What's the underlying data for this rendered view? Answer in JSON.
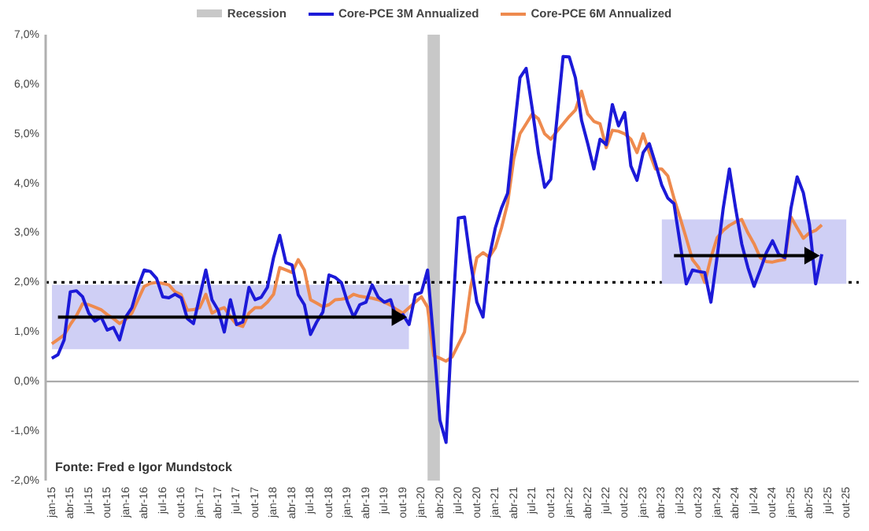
{
  "chart_data": {
    "type": "line",
    "annotations": [
      "Fonte: Fred e Igor Mundstock"
    ],
    "x": [
      "2015-01",
      "2015-02",
      "2015-03",
      "2015-04",
      "2015-05",
      "2015-06",
      "2015-07",
      "2015-08",
      "2015-09",
      "2015-10",
      "2015-11",
      "2015-12",
      "2016-01",
      "2016-02",
      "2016-03",
      "2016-04",
      "2016-05",
      "2016-06",
      "2016-07",
      "2016-08",
      "2016-09",
      "2016-10",
      "2016-11",
      "2016-12",
      "2017-01",
      "2017-02",
      "2017-03",
      "2017-04",
      "2017-05",
      "2017-06",
      "2017-07",
      "2017-08",
      "2017-09",
      "2017-10",
      "2017-11",
      "2017-12",
      "2018-01",
      "2018-02",
      "2018-03",
      "2018-04",
      "2018-05",
      "2018-06",
      "2018-07",
      "2018-08",
      "2018-09",
      "2018-10",
      "2018-11",
      "2018-12",
      "2019-01",
      "2019-02",
      "2019-03",
      "2019-04",
      "2019-05",
      "2019-06",
      "2019-07",
      "2019-08",
      "2019-09",
      "2019-10",
      "2019-11",
      "2019-12",
      "2020-01",
      "2020-02",
      "2020-03",
      "2020-04",
      "2020-05",
      "2020-06",
      "2020-07",
      "2020-08",
      "2020-09",
      "2020-10",
      "2020-11",
      "2020-12",
      "2021-01",
      "2021-02",
      "2021-03",
      "2021-04",
      "2021-05",
      "2021-06",
      "2021-07",
      "2021-08",
      "2021-09",
      "2021-10",
      "2021-11",
      "2021-12",
      "2022-01",
      "2022-02",
      "2022-03",
      "2022-04",
      "2022-05",
      "2022-06",
      "2022-07",
      "2022-08",
      "2022-09",
      "2022-10",
      "2022-11",
      "2022-12",
      "2023-01",
      "2023-02",
      "2023-03",
      "2023-04",
      "2023-05",
      "2023-06",
      "2023-07",
      "2023-08",
      "2023-09",
      "2023-10",
      "2023-11",
      "2023-12",
      "2024-01",
      "2024-02",
      "2024-03",
      "2024-04",
      "2024-05",
      "2024-06",
      "2024-07",
      "2024-08",
      "2024-09",
      "2024-10",
      "2024-11",
      "2024-12",
      "2025-01",
      "2025-02",
      "2025-03",
      "2025-04",
      "2025-05",
      "2025-06"
    ],
    "series": [
      {
        "name": "Core-PCE 3M Annualized",
        "color": "#1c1ad8",
        "values": [
          0.47,
          0.54,
          0.84,
          1.81,
          1.83,
          1.71,
          1.38,
          1.22,
          1.3,
          1.04,
          1.09,
          0.84,
          1.3,
          1.49,
          1.92,
          2.25,
          2.22,
          2.08,
          1.71,
          1.69,
          1.76,
          1.69,
          1.27,
          1.17,
          1.71,
          2.25,
          1.65,
          1.44,
          1.0,
          1.65,
          1.15,
          1.2,
          1.9,
          1.65,
          1.7,
          1.9,
          2.5,
          2.95,
          2.4,
          2.35,
          1.75,
          1.55,
          0.95,
          1.2,
          1.4,
          2.15,
          2.1,
          2.0,
          1.6,
          1.3,
          1.55,
          1.6,
          1.95,
          1.7,
          1.6,
          1.65,
          1.25,
          1.35,
          1.15,
          1.75,
          1.8,
          2.25,
          0.8,
          -0.78,
          -1.23,
          1.2,
          3.3,
          3.32,
          2.4,
          1.6,
          1.3,
          2.5,
          3.1,
          3.5,
          3.8,
          5.0,
          6.13,
          6.32,
          5.5,
          4.6,
          3.92,
          4.08,
          5.3,
          6.56,
          6.55,
          6.13,
          5.27,
          4.8,
          4.29,
          4.89,
          4.78,
          5.59,
          5.16,
          5.43,
          4.35,
          4.06,
          4.62,
          4.8,
          4.4,
          3.97,
          3.7,
          3.59,
          2.78,
          1.97,
          2.25,
          2.22,
          2.2,
          1.6,
          2.51,
          3.5,
          4.29,
          3.5,
          2.78,
          2.3,
          1.92,
          2.25,
          2.6,
          2.84,
          2.57,
          2.5,
          3.5,
          4.13,
          3.81,
          3.16,
          1.97,
          2.57
        ]
      },
      {
        "name": "Core-PCE 6M Annualized",
        "color": "#ee8a4e",
        "values": [
          0.76,
          0.85,
          0.94,
          1.15,
          1.33,
          1.57,
          1.55,
          1.5,
          1.45,
          1.35,
          1.27,
          1.17,
          1.25,
          1.38,
          1.65,
          1.92,
          1.98,
          2.0,
          1.98,
          1.95,
          1.81,
          1.75,
          1.44,
          1.45,
          1.49,
          1.76,
          1.38,
          1.45,
          1.49,
          1.3,
          1.15,
          1.11,
          1.38,
          1.49,
          1.49,
          1.6,
          1.76,
          2.3,
          2.25,
          2.2,
          2.46,
          2.25,
          1.65,
          1.58,
          1.51,
          1.55,
          1.65,
          1.66,
          1.68,
          1.76,
          1.72,
          1.7,
          1.68,
          1.65,
          1.6,
          1.54,
          1.45,
          1.38,
          1.49,
          1.6,
          1.71,
          1.5,
          0.52,
          0.47,
          0.41,
          0.5,
          0.75,
          1.0,
          1.9,
          2.5,
          2.6,
          2.51,
          2.7,
          3.1,
          3.6,
          4.5,
          5.0,
          5.2,
          5.4,
          5.3,
          5.0,
          4.89,
          5.05,
          5.2,
          5.35,
          5.48,
          5.86,
          5.4,
          5.25,
          5.2,
          4.72,
          5.07,
          5.05,
          5.0,
          4.89,
          4.62,
          5.0,
          4.62,
          4.29,
          4.29,
          4.15,
          3.7,
          3.3,
          2.89,
          2.46,
          2.3,
          2.0,
          2.5,
          2.9,
          3.05,
          3.15,
          3.22,
          3.27,
          3.0,
          2.78,
          2.5,
          2.42,
          2.41,
          2.44,
          2.46,
          3.32,
          3.1,
          2.89,
          3.0,
          3.05,
          3.16
        ]
      },
      {
        "type": "area",
        "color": "#cfcff5",
        "x": [
          "2015-01",
          "2019-11"
        ],
        "values": [
          null,
          null
        ],
        "lower": [
          0.65,
          0.65
        ],
        "upper": [
          1.95,
          1.95
        ]
      },
      {
        "type": "area",
        "color": "#cfcff5",
        "x": [
          "2023-04",
          "2025-10"
        ],
        "values": [
          null,
          null
        ],
        "lower": [
          1.97,
          1.97
        ],
        "upper": [
          3.27,
          3.27
        ]
      },
      {
        "color": "#000000",
        "x": [
          "2015-02",
          "2019-09"
        ],
        "values": [
          1.3,
          1.3
        ],
        "marker": "triangle"
      },
      {
        "color": "#000000",
        "x": [
          "2023-06",
          "2025-04"
        ],
        "values": [
          2.54,
          2.54
        ],
        "marker": "triangle"
      }
    ],
    "xlim": [
      "2014-12",
      "2025-12"
    ],
    "xticks": [
      {
        "value": "2015-01",
        "label": "jan-15"
      },
      {
        "value": "2015-04",
        "label": "abr-15"
      },
      {
        "value": "2015-07",
        "label": "jul-15"
      },
      {
        "value": "2015-10",
        "label": "out-15"
      },
      {
        "value": "2016-01",
        "label": "jan-16"
      },
      {
        "value": "2016-04",
        "label": "abr-16"
      },
      {
        "value": "2016-07",
        "label": "jul-16"
      },
      {
        "value": "2016-10",
        "label": "out-16"
      },
      {
        "value": "2017-01",
        "label": "jan-17"
      },
      {
        "value": "2017-04",
        "label": "abr-17"
      },
      {
        "value": "2017-07",
        "label": "jul-17"
      },
      {
        "value": "2017-10",
        "label": "out-17"
      },
      {
        "value": "2018-01",
        "label": "jan-18"
      },
      {
        "value": "2018-04",
        "label": "abr-18"
      },
      {
        "value": "2018-07",
        "label": "jul-18"
      },
      {
        "value": "2018-10",
        "label": "out-18"
      },
      {
        "value": "2019-01",
        "label": "jan-19"
      },
      {
        "value": "2019-04",
        "label": "abr-19"
      },
      {
        "value": "2019-07",
        "label": "jul-19"
      },
      {
        "value": "2019-10",
        "label": "out-19"
      },
      {
        "value": "2020-01",
        "label": "jan-20"
      },
      {
        "value": "2020-04",
        "label": "abr-20"
      },
      {
        "value": "2020-07",
        "label": "jul-20"
      },
      {
        "value": "2020-10",
        "label": "out-20"
      },
      {
        "value": "2021-01",
        "label": "jan-21"
      },
      {
        "value": "2021-04",
        "label": "abr-21"
      },
      {
        "value": "2021-07",
        "label": "jul-21"
      },
      {
        "value": "2021-10",
        "label": "out-21"
      },
      {
        "value": "2022-01",
        "label": "jan-22"
      },
      {
        "value": "2022-04",
        "label": "abr-22"
      },
      {
        "value": "2022-07",
        "label": "jul-22"
      },
      {
        "value": "2022-10",
        "label": "out-22"
      },
      {
        "value": "2023-01",
        "label": "jan-23"
      },
      {
        "value": "2023-04",
        "label": "abr-23"
      },
      {
        "value": "2023-07",
        "label": "jul-23"
      },
      {
        "value": "2023-10",
        "label": "out-23"
      },
      {
        "value": "2024-01",
        "label": "jan-24"
      },
      {
        "value": "2024-04",
        "label": "abr-24"
      },
      {
        "value": "2024-07",
        "label": "jul-24"
      },
      {
        "value": "2024-10",
        "label": "out-24"
      },
      {
        "value": "2025-01",
        "label": "jan-25"
      },
      {
        "value": "2025-04",
        "label": "abr-25"
      },
      {
        "value": "2025-07",
        "label": "jul-25"
      },
      {
        "value": "2025-10",
        "label": "out-25"
      }
    ],
    "ylim": [
      -2,
      7
    ],
    "yticks": [
      {
        "value": -2,
        "label": "-2,0%"
      },
      {
        "value": -1,
        "label": "-1,0%"
      },
      {
        "value": 0,
        "label": "0,0%"
      },
      {
        "value": 1,
        "label": "1,0%"
      },
      {
        "value": 2,
        "label": "2,0%"
      },
      {
        "value": 3,
        "label": "3,0%"
      },
      {
        "value": 4,
        "label": "4,0%"
      },
      {
        "value": 5,
        "label": "5,0%"
      },
      {
        "value": 6,
        "label": "6,0%"
      },
      {
        "value": 7,
        "label": "7,0%"
      }
    ],
    "bands": [
      {
        "axis": "x",
        "from": "2020-02",
        "to": "2020-04",
        "label": "Recession",
        "color": "#c8c8c8"
      }
    ],
    "ref_lines": [
      {
        "axis": "y",
        "value": 2,
        "color": "#000000",
        "line_style": "dotted"
      },
      {
        "axis": "y",
        "value": 0,
        "color": "#a0a0a0",
        "line_style": "solid"
      }
    ],
    "legend": "top",
    "grid": false,
    "marker": "none",
    "line_style": "solid"
  }
}
